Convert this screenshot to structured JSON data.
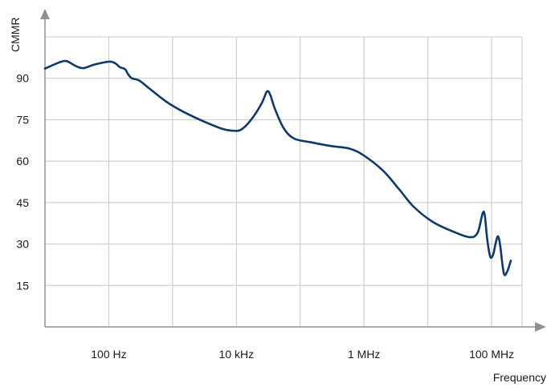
{
  "chart_data": {
    "type": "line",
    "title": "",
    "xlabel": "Frequency",
    "ylabel": "CMMR",
    "x_scale": "log",
    "xlim": [
      10,
      300000000
    ],
    "ylim": [
      0,
      105
    ],
    "grid": true,
    "y_ticks": [
      {
        "value": 15,
        "label": "15"
      },
      {
        "value": 30,
        "label": "30"
      },
      {
        "value": 45,
        "label": "45"
      },
      {
        "value": 60,
        "label": "60"
      },
      {
        "value": 75,
        "label": "75"
      },
      {
        "value": 90,
        "label": "90"
      }
    ],
    "x_ticks": [
      {
        "value": 100,
        "label": "100 Hz"
      },
      {
        "value": 10000,
        "label": "10 kHz"
      },
      {
        "value": 1000000,
        "label": "1 MHz"
      },
      {
        "value": 100000000,
        "label": "100 MHz"
      }
    ],
    "line_color": "#0b3a70",
    "series": [
      {
        "points": [
          [
            10,
            93.5
          ],
          [
            17,
            95.8
          ],
          [
            22,
            96.2
          ],
          [
            30,
            94.5
          ],
          [
            40,
            93.7
          ],
          [
            60,
            95.0
          ],
          [
            100,
            96.0
          ],
          [
            125,
            95.5
          ],
          [
            150,
            94.0
          ],
          [
            180,
            93.3
          ],
          [
            200,
            91.5
          ],
          [
            230,
            90.0
          ],
          [
            300,
            89.2
          ],
          [
            450,
            86.0
          ],
          [
            800,
            81.5
          ],
          [
            1500,
            77.8
          ],
          [
            3000,
            74.5
          ],
          [
            6000,
            71.7
          ],
          [
            9000,
            71.0
          ],
          [
            12000,
            71.5
          ],
          [
            17000,
            75.0
          ],
          [
            25000,
            81.0
          ],
          [
            30000,
            85.2
          ],
          [
            34000,
            84.0
          ],
          [
            40000,
            79.0
          ],
          [
            55000,
            72.0
          ],
          [
            80000,
            68.2
          ],
          [
            150000,
            66.8
          ],
          [
            300000,
            65.5
          ],
          [
            600000,
            64.5
          ],
          [
            1000000,
            62.0
          ],
          [
            2000000,
            56.5
          ],
          [
            3500000,
            50.0
          ],
          [
            6000000,
            43.5
          ],
          [
            12000000,
            38.0
          ],
          [
            25000000,
            34.5
          ],
          [
            45000000,
            32.5
          ],
          [
            60000000,
            34.0
          ],
          [
            72000000,
            41.0
          ],
          [
            78000000,
            40.5
          ],
          [
            85000000,
            32.0
          ],
          [
            95000000,
            25.5
          ],
          [
            105000000,
            26.0
          ],
          [
            115000000,
            30.0
          ],
          [
            125000000,
            32.8
          ],
          [
            135000000,
            30.0
          ],
          [
            155000000,
            19.5
          ],
          [
            175000000,
            20.0
          ],
          [
            200000000,
            24.0
          ]
        ]
      }
    ]
  }
}
